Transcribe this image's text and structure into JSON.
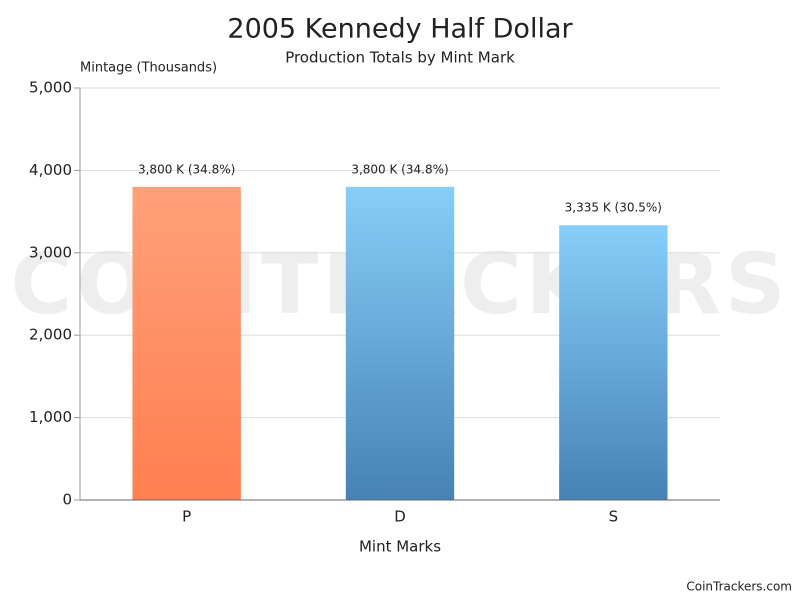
{
  "chart_data": {
    "type": "bar",
    "title": "2005 Kennedy Half Dollar",
    "subtitle": "Production Totals by Mint Mark",
    "y_label": "Mintage (Thousands)",
    "x_label": "Mint Marks",
    "categories": [
      "P",
      "D",
      "S"
    ],
    "values": [
      3800,
      3800,
      3335
    ],
    "value_labels": [
      "3,800 K (34.8%)",
      "3,800 K (34.8%)",
      "3,335 K (30.5%)"
    ],
    "colors": [
      [
        "#ffa07a",
        "#ff7f50"
      ],
      [
        "#87cefa",
        "#4682b4"
      ],
      [
        "#87cefa",
        "#4682b4"
      ]
    ],
    "ylim": [
      0,
      5000
    ],
    "yticks": [
      0,
      {
        "value": 1000,
        "label": "1,000"
      },
      {
        "value": 2000,
        "label": "2,000"
      },
      {
        "value": 3000,
        "label": "3,000"
      },
      {
        "value": 4000,
        "label": "4,000"
      },
      {
        "value": 5000,
        "label": "5,000"
      }
    ],
    "grid": true,
    "watermark": "COINTRACKERS",
    "footer": "CoinTrackers.com"
  }
}
